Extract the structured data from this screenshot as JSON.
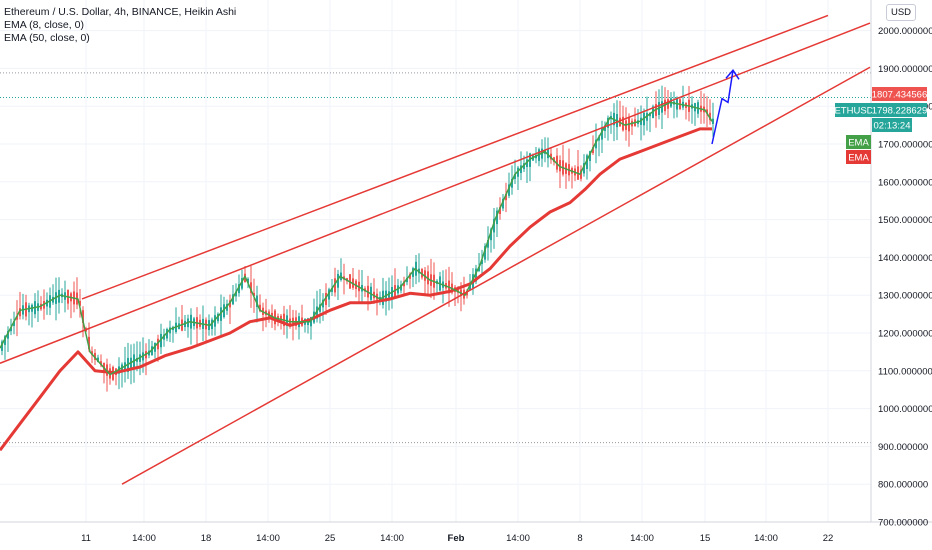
{
  "legend": {
    "title": "Ethereum / U.S. Dollar, 4h, BINANCE, Heikin Ashi",
    "ema_fast": "EMA (8, close, 0)",
    "ema_slow": "EMA (50, close, 0)"
  },
  "currency_button": "USD",
  "badges": {
    "red_price": "1807.434566",
    "symbol": "ETHUSD",
    "last_price": "1798.228629",
    "countdown": "02:13:24",
    "ema_fast_label": "EMA",
    "ema_slow_label": "EMA"
  },
  "colors": {
    "up": "#26a69a",
    "down": "#ef5350",
    "ema_fast": "#43a047",
    "ema_slow": "#e53935",
    "channel": "#e53935",
    "arrow": "#1a1aff",
    "grid": "#f0f3fa"
  },
  "chart_data": {
    "type": "candlestick",
    "title": "Ethereum / U.S. Dollar, 4h, BINANCE, Heikin Ashi",
    "y_ticks": [
      "700.000000",
      "800.000000",
      "900.000000",
      "1000.000000",
      "1100.000000",
      "1200.000000",
      "1300.000000",
      "1400.000000",
      "1500.000000",
      "1600.000000",
      "1700.000000",
      "1800.000000",
      "1900.000000",
      "2000.000000"
    ],
    "x_ticks": [
      {
        "label": "11",
        "bold": false
      },
      {
        "label": "14:00",
        "bold": false
      },
      {
        "label": "18",
        "bold": false
      },
      {
        "label": "14:00",
        "bold": false
      },
      {
        "label": "25",
        "bold": false
      },
      {
        "label": "14:00",
        "bold": false
      },
      {
        "label": "Feb",
        "bold": true
      },
      {
        "label": "14:00",
        "bold": false
      },
      {
        "label": "8",
        "bold": false
      },
      {
        "label": "14:00",
        "bold": false
      },
      {
        "label": "15",
        "bold": false
      },
      {
        "label": "14:00",
        "bold": false
      },
      {
        "label": "22",
        "bold": false
      }
    ],
    "price_range": [
      680,
      2040
    ],
    "ema_8": [
      [
        0,
        1160
      ],
      [
        20,
        1260
      ],
      [
        40,
        1270
      ],
      [
        60,
        1300
      ],
      [
        78,
        1290
      ],
      [
        90,
        1150
      ],
      [
        110,
        1090
      ],
      [
        130,
        1120
      ],
      [
        150,
        1150
      ],
      [
        170,
        1210
      ],
      [
        190,
        1230
      ],
      [
        210,
        1220
      ],
      [
        230,
        1280
      ],
      [
        245,
        1350
      ],
      [
        260,
        1260
      ],
      [
        275,
        1240
      ],
      [
        290,
        1230
      ],
      [
        310,
        1230
      ],
      [
        325,
        1290
      ],
      [
        340,
        1350
      ],
      [
        360,
        1320
      ],
      [
        380,
        1290
      ],
      [
        400,
        1320
      ],
      [
        415,
        1370
      ],
      [
        430,
        1340
      ],
      [
        450,
        1320
      ],
      [
        465,
        1300
      ],
      [
        480,
        1380
      ],
      [
        495,
        1500
      ],
      [
        515,
        1620
      ],
      [
        530,
        1660
      ],
      [
        545,
        1680
      ],
      [
        560,
        1640
      ],
      [
        580,
        1620
      ],
      [
        595,
        1700
      ],
      [
        610,
        1770
      ],
      [
        625,
        1750
      ],
      [
        640,
        1760
      ],
      [
        655,
        1790
      ],
      [
        670,
        1810
      ],
      [
        690,
        1800
      ],
      [
        705,
        1790
      ],
      [
        712,
        1760
      ]
    ],
    "ema_50": [
      [
        0,
        890
      ],
      [
        20,
        960
      ],
      [
        40,
        1030
      ],
      [
        60,
        1100
      ],
      [
        78,
        1150
      ],
      [
        95,
        1100
      ],
      [
        115,
        1095
      ],
      [
        140,
        1110
      ],
      [
        165,
        1140
      ],
      [
        190,
        1160
      ],
      [
        210,
        1180
      ],
      [
        230,
        1200
      ],
      [
        250,
        1230
      ],
      [
        270,
        1240
      ],
      [
        290,
        1220
      ],
      [
        310,
        1235
      ],
      [
        330,
        1260
      ],
      [
        350,
        1280
      ],
      [
        370,
        1280
      ],
      [
        390,
        1290
      ],
      [
        410,
        1305
      ],
      [
        430,
        1300
      ],
      [
        450,
        1310
      ],
      [
        470,
        1330
      ],
      [
        490,
        1370
      ],
      [
        510,
        1430
      ],
      [
        530,
        1480
      ],
      [
        550,
        1520
      ],
      [
        570,
        1545
      ],
      [
        585,
        1580
      ],
      [
        600,
        1620
      ],
      [
        620,
        1660
      ],
      [
        640,
        1680
      ],
      [
        660,
        1700
      ],
      [
        680,
        1720
      ],
      [
        700,
        1740
      ],
      [
        712,
        1740
      ]
    ],
    "channel_lines": [
      {
        "p1": [
          82,
          1290
        ],
        "p2": [
          828,
          2040
        ]
      },
      {
        "p1": [
          0,
          1120
        ],
        "p2": [
          870,
          2020
        ]
      },
      {
        "p1": [
          122,
          800
        ],
        "p2": [
          870,
          1903
        ]
      }
    ],
    "dotted_levels": [
      1888,
      910
    ],
    "annotation_arrow": {
      "points": [
        [
          712,
          1700
        ],
        [
          722,
          1820
        ],
        [
          728,
          1810
        ],
        [
          733,
          1895
        ]
      ]
    }
  }
}
